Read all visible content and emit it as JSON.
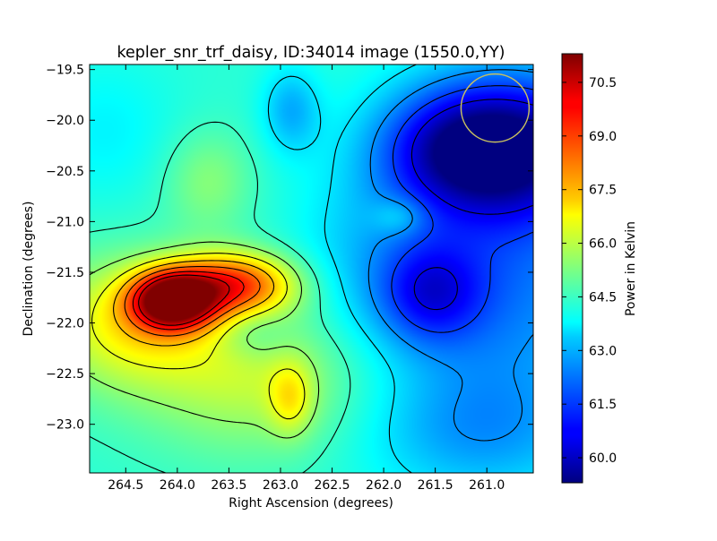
{
  "chart_data": {
    "type": "heatmap",
    "title": "kepler_snr_trf_daisy, ID:34014 image (1550.0,YY)",
    "xlabel": "Right Ascension (degrees)",
    "ylabel": "Declination (degrees)",
    "colorbar_label": "Power in Kelvin",
    "xlim": [
      264.85,
      260.55
    ],
    "ylim": [
      -23.48,
      -19.45
    ],
    "x_ticks": [
      264.5,
      264.0,
      263.5,
      263.0,
      262.5,
      262.0,
      261.5,
      261.0
    ],
    "x_tick_labels": [
      "264.5",
      "264.0",
      "263.5",
      "263.0",
      "262.5",
      "262.0",
      "261.5",
      "261.0"
    ],
    "y_ticks": [
      -19.5,
      -20.0,
      -20.5,
      -21.0,
      -21.5,
      -22.0,
      -22.5,
      -23.0
    ],
    "y_tick_labels": [
      "−19.5",
      "−20.0",
      "−20.5",
      "−21.0",
      "−21.5",
      "−22.0",
      "−22.5",
      "−23.0"
    ],
    "colorbar_range": [
      59.3,
      71.3
    ],
    "colorbar_ticks": [
      60.0,
      61.5,
      63.0,
      64.5,
      66.0,
      67.5,
      69.0,
      70.5
    ],
    "colorbar_tick_labels": [
      "60.0",
      "61.5",
      "63.0",
      "64.5",
      "66.0",
      "67.5",
      "69.0",
      "70.5"
    ],
    "colormap": "jet",
    "contour_color": "#000000",
    "beam_circle": {
      "ra": 260.92,
      "dec": -19.88,
      "radius_deg": 0.33,
      "color": "#c8c060"
    },
    "field": {
      "base": 64.3,
      "features": [
        {
          "ra": 264.05,
          "dec": -21.78,
          "sra": 0.28,
          "sdec": 0.2,
          "amp": 6.5
        },
        {
          "ra": 263.45,
          "dec": -21.62,
          "sra": 0.42,
          "sdec": 0.22,
          "amp": 4.4
        },
        {
          "ra": 264.45,
          "dec": -22.0,
          "sra": 0.6,
          "sdec": 0.45,
          "amp": 2.4
        },
        {
          "ra": 263.2,
          "dec": -22.5,
          "sra": 0.8,
          "sdec": 0.55,
          "amp": 1.8
        },
        {
          "ra": 262.9,
          "dec": -22.75,
          "sra": 0.15,
          "sdec": 0.25,
          "amp": 1.6
        },
        {
          "ra": 263.7,
          "dec": -20.6,
          "sra": 0.3,
          "sdec": 0.35,
          "amp": 1.1
        },
        {
          "ra": 262.9,
          "dec": -19.9,
          "sra": 0.2,
          "sdec": 0.3,
          "amp": -1.4
        },
        {
          "ra": 263.25,
          "dec": -22.1,
          "sra": 0.25,
          "sdec": 0.2,
          "amp": -0.9
        },
        {
          "ra": 260.75,
          "dec": -20.25,
          "sra": 0.7,
          "sdec": 0.5,
          "amp": -4.6
        },
        {
          "ra": 261.4,
          "dec": -20.3,
          "sra": 0.5,
          "sdec": 0.4,
          "amp": -1.8
        },
        {
          "ra": 261.55,
          "dec": -21.7,
          "sra": 0.35,
          "sdec": 0.35,
          "amp": -2.4
        },
        {
          "ra": 260.9,
          "dec": -21.6,
          "sra": 0.9,
          "sdec": 0.95,
          "amp": -2.1
        },
        {
          "ra": 261.1,
          "dec": -23.1,
          "sra": 0.8,
          "sdec": 0.45,
          "amp": -1.3
        },
        {
          "ra": 262.3,
          "dec": -21.5,
          "sra": 0.45,
          "sdec": 0.7,
          "amp": -0.7
        },
        {
          "ra": 264.7,
          "dec": -20.1,
          "sra": 0.5,
          "sdec": 0.5,
          "amp": -0.6
        },
        {
          "ra": 261.85,
          "dec": -20.95,
          "sra": 0.18,
          "sdec": 0.13,
          "amp": 1.0
        }
      ],
      "contour_levels": [
        60.5,
        61.5,
        62.5,
        63.5,
        64.5,
        65.5,
        66.5,
        67.5,
        68.5,
        69.5,
        70.3
      ]
    }
  }
}
